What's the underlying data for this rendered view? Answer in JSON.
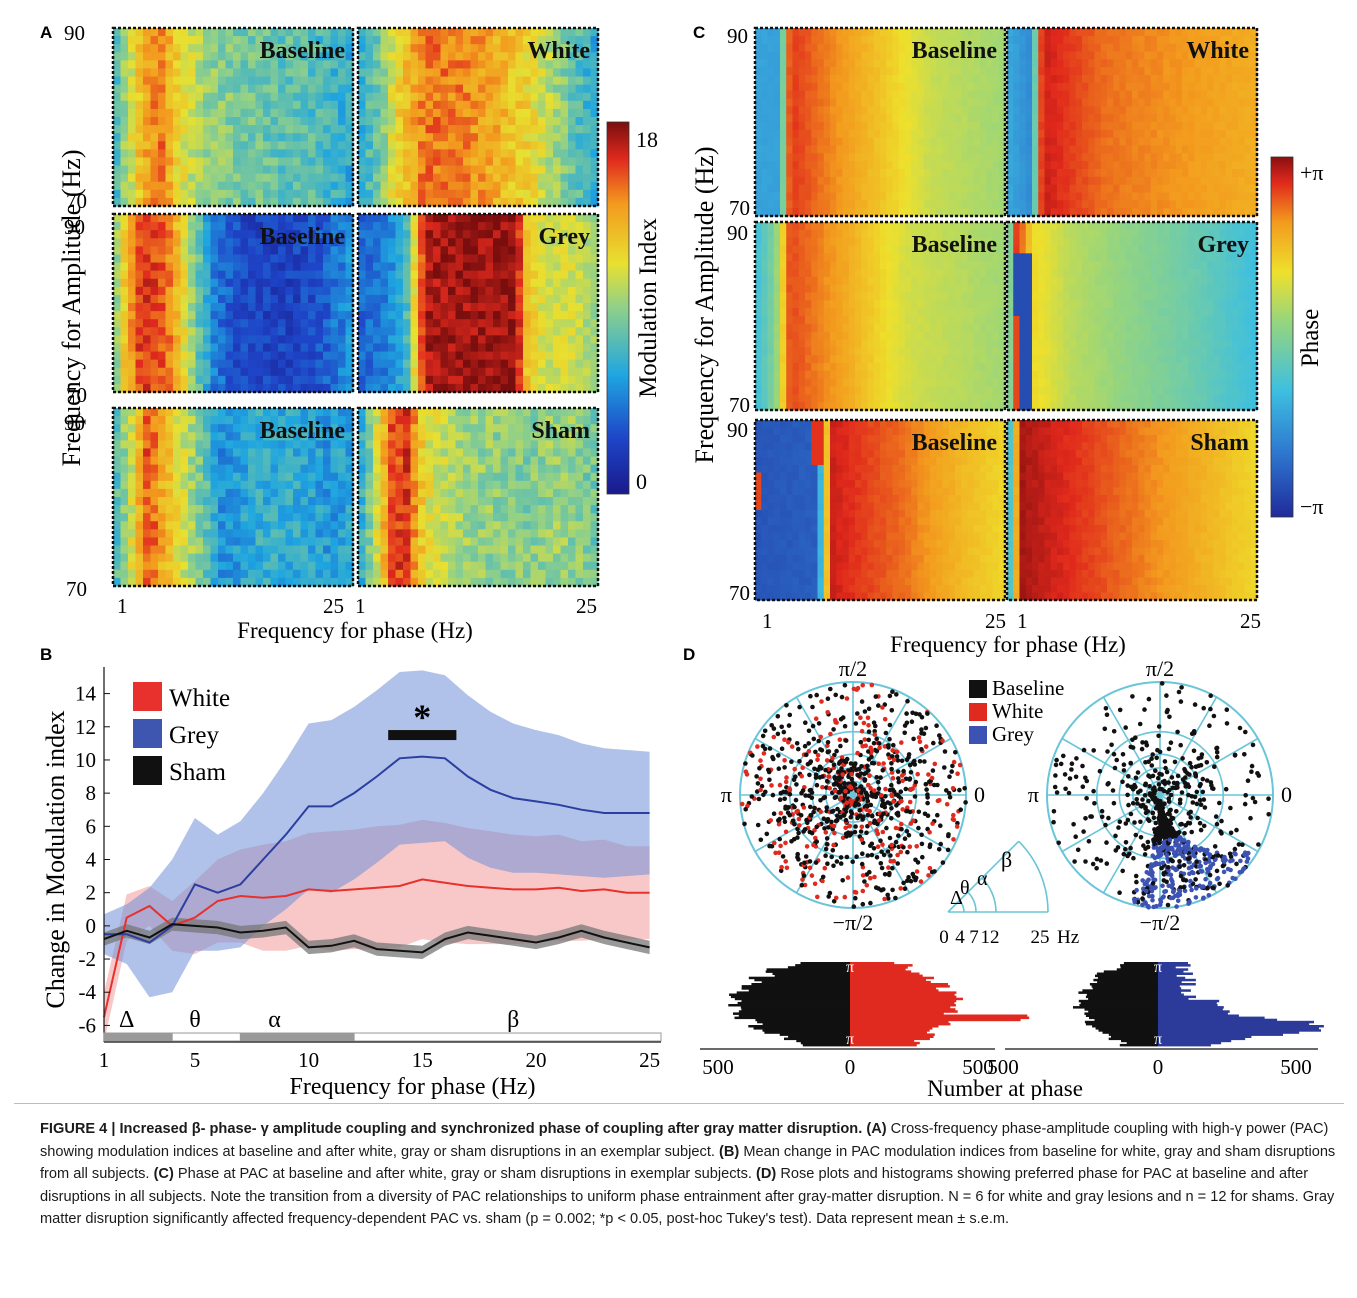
{
  "panel_letters": [
    "A",
    "B",
    "C",
    "D"
  ],
  "heatmap_labels": {
    "baseline": "Baseline",
    "white": "White",
    "grey": "Grey",
    "sham": "Sham"
  },
  "panel_a": {
    "ylabel": "Frequency for Amplitude (Hz)",
    "xlabel": "Frequency for phase (Hz)",
    "y_ticks": [
      "90",
      "70"
    ],
    "x_ticks": [
      "1",
      "25"
    ],
    "colorbar_label": "Modulation Index",
    "colorbar_ticks": [
      "18",
      "0"
    ]
  },
  "panel_c": {
    "ylabel": "Frequency for Amplitude (Hz)",
    "xlabel": "Frequency for phase (Hz)",
    "y_ticks": [
      "90",
      "70"
    ],
    "x_ticks": [
      "1",
      "25"
    ],
    "colorbar_label": "Phase",
    "colorbar_ticks": [
      "+π",
      "−π"
    ]
  },
  "panel_d": {
    "legend": [
      "Baseline",
      "White",
      "Grey"
    ],
    "angle_labels": {
      "top": "π/2",
      "left": "π",
      "right": "0",
      "bottom": "−π/2"
    },
    "band_key_greek": [
      "Δ",
      "θ",
      "α",
      "β"
    ],
    "band_key_ticks": [
      "0",
      "4",
      "7",
      "12",
      "25"
    ],
    "band_key_unit": "Hz",
    "hist_pi": "π",
    "hist_ticks": [
      "500",
      "0",
      "500"
    ],
    "hist_xlabel": "Number at phase"
  },
  "chart_data": {
    "type": "line",
    "x": [
      1,
      2,
      3,
      4,
      5,
      6,
      7,
      8,
      9,
      10,
      11,
      12,
      13,
      14,
      15,
      16,
      17,
      18,
      19,
      20,
      21,
      22,
      23,
      24,
      25
    ],
    "xlabel": "Frequency for phase (Hz)",
    "ylabel": "Change in Modulation index",
    "xlim": [
      1,
      25.5
    ],
    "ylim": [
      -7,
      15
    ],
    "x_ticks": [
      1,
      5,
      10,
      15,
      20,
      25
    ],
    "y_ticks": [
      -6,
      -4,
      -2,
      0,
      2,
      4,
      6,
      8,
      10,
      12,
      14
    ],
    "series": [
      {
        "name": "White",
        "color": "#e8302c",
        "values": [
          -5.5,
          0.5,
          1.2,
          0.0,
          0.5,
          1.5,
          1.8,
          1.7,
          1.8,
          2.2,
          2.1,
          2.2,
          2.3,
          2.4,
          2.8,
          2.6,
          2.4,
          2.3,
          2.2,
          2.2,
          2.3,
          2.1,
          2.2,
          2.0,
          2.0
        ],
        "sem": [
          1.5,
          1.4,
          1.2,
          1.5,
          2.2,
          2.5,
          2.8,
          3.2,
          3.3,
          3.4,
          3.6,
          3.6,
          3.7,
          3.7,
          3.6,
          3.6,
          3.5,
          3.4,
          3.3,
          3.2,
          3.2,
          3.0,
          3.0,
          2.8,
          2.8
        ]
      },
      {
        "name": "Grey",
        "color": "#2c3fa0",
        "values": [
          -0.5,
          -0.5,
          -1.0,
          0.0,
          2.5,
          2.0,
          2.5,
          4.0,
          5.5,
          7.2,
          7.2,
          8.0,
          9.0,
          10.1,
          10.2,
          10.1,
          9.0,
          8.2,
          7.7,
          7.5,
          7.3,
          7.0,
          6.8,
          6.8,
          6.8
        ],
        "sem": [
          1.2,
          1.8,
          3.3,
          4.0,
          4.0,
          3.5,
          3.8,
          4.0,
          4.5,
          5.0,
          5.2,
          5.2,
          5.2,
          5.2,
          5.2,
          5.0,
          4.9,
          4.7,
          4.5,
          4.3,
          4.2,
          4.0,
          3.9,
          3.8,
          3.7
        ]
      },
      {
        "name": "Sham",
        "color": "#111111",
        "values": [
          -0.8,
          -0.3,
          -0.7,
          0.1,
          0.0,
          -0.1,
          -0.4,
          -0.3,
          -0.1,
          -1.3,
          -1.2,
          -0.9,
          -1.4,
          -1.5,
          -1.6,
          -0.8,
          -0.4,
          -0.6,
          -0.8,
          -1.0,
          -0.7,
          -0.3,
          -0.7,
          -1.0,
          -1.3
        ],
        "sem": [
          0.4,
          0.4,
          0.4,
          0.4,
          0.4,
          0.4,
          0.4,
          0.4,
          0.4,
          0.4,
          0.4,
          0.4,
          0.4,
          0.4,
          0.4,
          0.4,
          0.4,
          0.4,
          0.4,
          0.4,
          0.4,
          0.4,
          0.4,
          0.4,
          0.4
        ]
      }
    ],
    "significance": {
      "marker": "*",
      "x_range": [
        13.5,
        16.5
      ],
      "y": 11.5
    },
    "bands": [
      {
        "name": "Δ",
        "range": [
          1,
          4
        ]
      },
      {
        "name": "θ",
        "range": [
          4,
          7
        ]
      },
      {
        "name": "α",
        "range": [
          7,
          12
        ]
      },
      {
        "name": "β",
        "range": [
          12,
          25.5
        ]
      }
    ],
    "legend_position": "top-left"
  },
  "caption": {
    "title": "FIGURE 4 | Increased β- phase- γ amplitude coupling and synchronized phase of coupling after gray matter disruption.",
    "a_label": "(A)",
    "a_text": "Cross-frequency phase-amplitude coupling with high-γ power (PAC) showing modulation indices at baseline and after white, gray or sham disruptions in an exemplar subject.",
    "b_label": "(B)",
    "b_text": "Mean change in PAC modulation indices from baseline for white, gray and sham disruptions from all subjects.",
    "c_label": "(C)",
    "c_text": "Phase at PAC at baseline and after white, gray or sham disruptions in exemplar subjects.",
    "d_label": "(D)",
    "d_text": "Rose plots and histograms showing preferred phase for PAC at baseline and after disruptions in all subjects. Note the transition from a diversity of PAC relationships to uniform phase entrainment after gray-matter disruption. N = 6 for white and gray lesions and n = 12 for shams. Gray matter disruption significantly affected frequency-dependent PAC vs. sham (p = 0.002; *p < 0.05, post-hoc Tukey's test). Data represent mean ± s.e.m."
  }
}
